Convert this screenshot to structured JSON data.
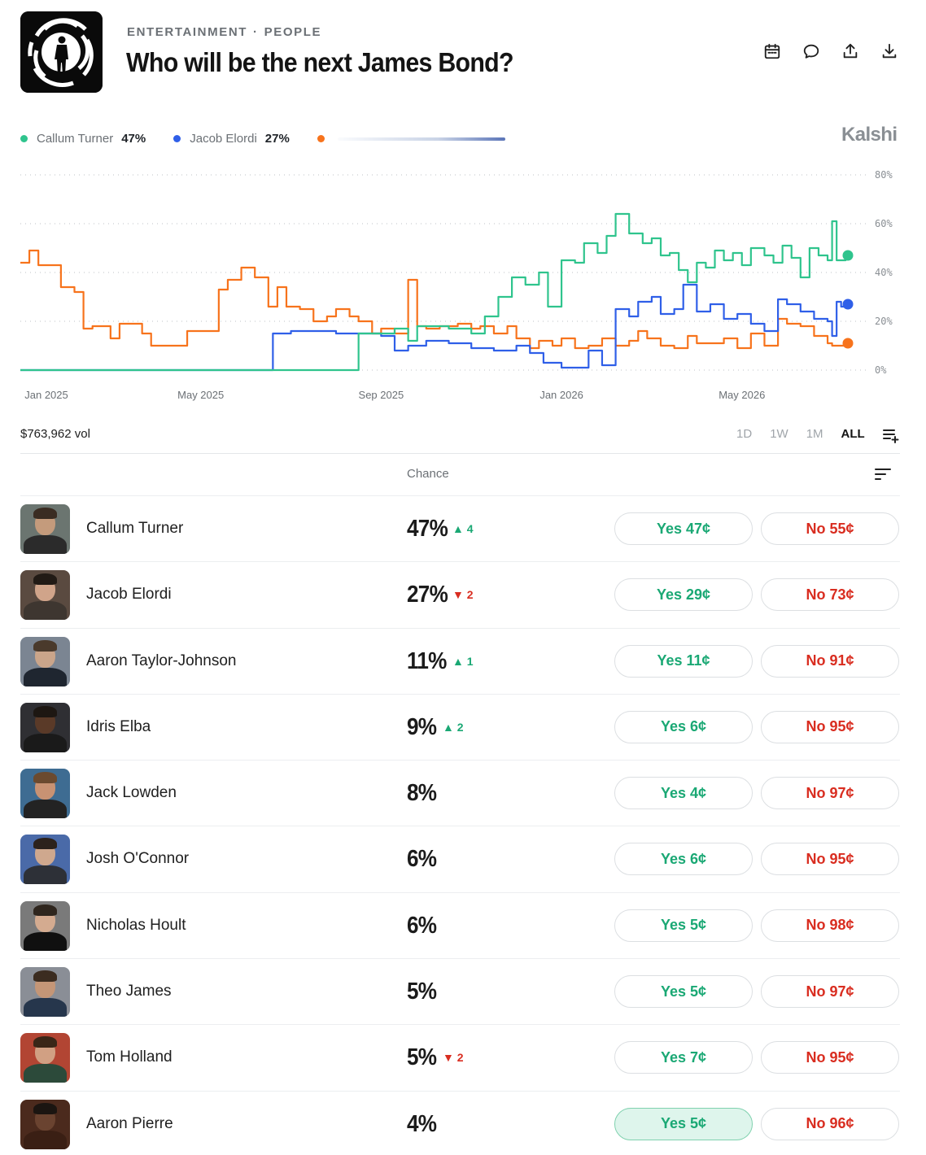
{
  "header": {
    "category": "ENTERTAINMENT",
    "subcategory": "PEOPLE",
    "separator": "·",
    "title": "Who will be the next James Bond?",
    "icons": [
      "calendar-icon",
      "comment-icon",
      "share-icon",
      "download-icon"
    ]
  },
  "brand": "Kalshi",
  "legend": [
    {
      "name": "Callum Turner",
      "value": "47%",
      "color": "#2fc48d"
    },
    {
      "name": "Jacob Elordi",
      "value": "27%",
      "color": "#2f5fe8"
    },
    {
      "name": "",
      "value": "",
      "color": "#f7731c"
    }
  ],
  "chart_data": {
    "type": "line",
    "x_tick_labels": [
      "Jan 2025",
      "May 2025",
      "Sep 2025",
      "Jan 2026",
      "May 2026"
    ],
    "y_tick_labels": [
      "80%",
      "60%",
      "40%",
      "20%",
      "0%"
    ],
    "ylim": [
      0,
      80
    ],
    "grid": true,
    "series": [
      {
        "name": "Callum Turner",
        "color": "#2fc48d",
        "points": [
          [
            0,
            0
          ],
          [
            1,
            0
          ],
          [
            2,
            0
          ],
          [
            3,
            0
          ],
          [
            4,
            0
          ],
          [
            5,
            0
          ],
          [
            6,
            0
          ],
          [
            6.5,
            0
          ],
          [
            7,
            0
          ],
          [
            7.5,
            15
          ],
          [
            8,
            15
          ],
          [
            8.3,
            17
          ],
          [
            8.6,
            12
          ],
          [
            8.8,
            18
          ],
          [
            9,
            18
          ],
          [
            9.5,
            17
          ],
          [
            10,
            15
          ],
          [
            10.3,
            22
          ],
          [
            10.6,
            30
          ],
          [
            10.9,
            38
          ],
          [
            11.2,
            35
          ],
          [
            11.5,
            40
          ],
          [
            11.7,
            26
          ],
          [
            12,
            45
          ],
          [
            12.3,
            44
          ],
          [
            12.5,
            52
          ],
          [
            12.8,
            48
          ],
          [
            13,
            55
          ],
          [
            13.2,
            64
          ],
          [
            13.5,
            56
          ],
          [
            13.8,
            52
          ],
          [
            14,
            54
          ],
          [
            14.2,
            47
          ],
          [
            14.4,
            48
          ],
          [
            14.6,
            41
          ],
          [
            14.8,
            36
          ],
          [
            15,
            44
          ],
          [
            15.2,
            42
          ],
          [
            15.4,
            49
          ],
          [
            15.6,
            45
          ],
          [
            15.8,
            48
          ],
          [
            16,
            43
          ],
          [
            16.2,
            50
          ],
          [
            16.5,
            47
          ],
          [
            16.7,
            44
          ],
          [
            16.9,
            51
          ],
          [
            17.1,
            46
          ],
          [
            17.3,
            38
          ],
          [
            17.5,
            50
          ],
          [
            17.7,
            47
          ],
          [
            17.9,
            45
          ],
          [
            18,
            61
          ],
          [
            18.1,
            45
          ],
          [
            18.3,
            48
          ],
          [
            18.35,
            47
          ]
        ]
      },
      {
        "name": "Jacob Elordi",
        "color": "#2f5fe8",
        "points": [
          [
            0,
            0
          ],
          [
            1,
            0
          ],
          [
            2,
            0
          ],
          [
            3,
            0
          ],
          [
            4,
            0
          ],
          [
            5,
            0
          ],
          [
            5.5,
            0
          ],
          [
            5.6,
            15
          ],
          [
            6,
            16
          ],
          [
            6.5,
            16
          ],
          [
            7,
            15
          ],
          [
            7.5,
            15
          ],
          [
            8,
            14
          ],
          [
            8.3,
            8
          ],
          [
            8.6,
            10
          ],
          [
            9,
            12
          ],
          [
            9.5,
            11
          ],
          [
            10,
            9
          ],
          [
            10.5,
            8
          ],
          [
            11,
            10
          ],
          [
            11.3,
            7
          ],
          [
            11.6,
            3
          ],
          [
            12,
            1
          ],
          [
            12.3,
            1
          ],
          [
            12.6,
            8
          ],
          [
            12.9,
            2
          ],
          [
            13.2,
            25
          ],
          [
            13.5,
            22
          ],
          [
            13.7,
            28
          ],
          [
            14,
            30
          ],
          [
            14.2,
            23
          ],
          [
            14.5,
            25
          ],
          [
            14.7,
            35
          ],
          [
            15,
            24
          ],
          [
            15.3,
            27
          ],
          [
            15.6,
            21
          ],
          [
            15.9,
            23
          ],
          [
            16.2,
            19
          ],
          [
            16.5,
            16
          ],
          [
            16.8,
            29
          ],
          [
            17,
            27
          ],
          [
            17.3,
            24
          ],
          [
            17.6,
            21
          ],
          [
            17.9,
            20
          ],
          [
            18,
            14
          ],
          [
            18.1,
            28
          ],
          [
            18.2,
            26
          ],
          [
            18.35,
            27
          ]
        ]
      },
      {
        "name": "",
        "color": "#f7731c",
        "points": [
          [
            0,
            44
          ],
          [
            0.2,
            49
          ],
          [
            0.4,
            43
          ],
          [
            0.6,
            43
          ],
          [
            0.8,
            43
          ],
          [
            0.9,
            34
          ],
          [
            1.2,
            32
          ],
          [
            1.4,
            17
          ],
          [
            1.6,
            18
          ],
          [
            1.8,
            18
          ],
          [
            2,
            13
          ],
          [
            2.2,
            19
          ],
          [
            2.5,
            19
          ],
          [
            2.7,
            15
          ],
          [
            2.9,
            10
          ],
          [
            3.2,
            10
          ],
          [
            3.5,
            10
          ],
          [
            3.7,
            16
          ],
          [
            4.2,
            16
          ],
          [
            4.4,
            33
          ],
          [
            4.6,
            37
          ],
          [
            4.9,
            42
          ],
          [
            5.2,
            38
          ],
          [
            5.5,
            26
          ],
          [
            5.7,
            34
          ],
          [
            5.9,
            26
          ],
          [
            6.2,
            25
          ],
          [
            6.5,
            20
          ],
          [
            6.8,
            22
          ],
          [
            7,
            25
          ],
          [
            7.3,
            22
          ],
          [
            7.5,
            20
          ],
          [
            7.8,
            15
          ],
          [
            8,
            17
          ],
          [
            8.3,
            15
          ],
          [
            8.6,
            37
          ],
          [
            8.8,
            18
          ],
          [
            9,
            17
          ],
          [
            9.3,
            18
          ],
          [
            9.5,
            18
          ],
          [
            9.7,
            19
          ],
          [
            10,
            17
          ],
          [
            10.2,
            18
          ],
          [
            10.5,
            15
          ],
          [
            10.8,
            18
          ],
          [
            11,
            13
          ],
          [
            11.3,
            9
          ],
          [
            11.5,
            12
          ],
          [
            11.8,
            10
          ],
          [
            12,
            13
          ],
          [
            12.3,
            9
          ],
          [
            12.6,
            10
          ],
          [
            12.9,
            13
          ],
          [
            13.2,
            10
          ],
          [
            13.5,
            12
          ],
          [
            13.7,
            16
          ],
          [
            13.9,
            13
          ],
          [
            14.2,
            10
          ],
          [
            14.5,
            9
          ],
          [
            14.8,
            14
          ],
          [
            15,
            11
          ],
          [
            15.3,
            11
          ],
          [
            15.6,
            13
          ],
          [
            15.9,
            9
          ],
          [
            16.2,
            15
          ],
          [
            16.5,
            10
          ],
          [
            16.8,
            21
          ],
          [
            17,
            19
          ],
          [
            17.3,
            18
          ],
          [
            17.6,
            14
          ],
          [
            17.9,
            11
          ],
          [
            18,
            10
          ],
          [
            18.35,
            11
          ]
        ]
      }
    ]
  },
  "volume": "$763,962 vol",
  "ranges": [
    {
      "label": "1D",
      "active": false
    },
    {
      "label": "1W",
      "active": false
    },
    {
      "label": "1M",
      "active": false
    },
    {
      "label": "ALL",
      "active": true
    }
  ],
  "table": {
    "chance_header": "Chance",
    "rows": [
      {
        "name": "Callum Turner",
        "pct": "47%",
        "change": "▲ 4",
        "dir": "up",
        "yes": "Yes 47¢",
        "no": "No 55¢",
        "skin": "#c49b7c",
        "hair": "#3a2c22",
        "suit": "#2b2b2b",
        "bg": "#6b7570"
      },
      {
        "name": "Jacob Elordi",
        "pct": "27%",
        "change": "▼ 2",
        "dir": "down",
        "yes": "Yes 29¢",
        "no": "No 73¢",
        "skin": "#d0a48a",
        "hair": "#211a15",
        "suit": "#3e3630",
        "bg": "#5a4a40"
      },
      {
        "name": "Aaron Taylor-Johnson",
        "pct": "11%",
        "change": "▲ 1",
        "dir": "up",
        "yes": "Yes 11¢",
        "no": "No 91¢",
        "skin": "#caa58a",
        "hair": "#4a3a2c",
        "suit": "#1f2630",
        "bg": "#7b8592"
      },
      {
        "name": "Idris Elba",
        "pct": "9%",
        "change": "▲ 2",
        "dir": "up",
        "yes": "Yes 6¢",
        "no": "No 95¢",
        "skin": "#5a3a28",
        "hair": "#1d1712",
        "suit": "#1a1a1a",
        "bg": "#2f2f33"
      },
      {
        "name": "Jack Lowden",
        "pct": "8%",
        "change": "",
        "dir": "",
        "yes": "Yes 4¢",
        "no": "No 97¢",
        "skin": "#c89273",
        "hair": "#6b4a2f",
        "suit": "#232323",
        "bg": "#3e6c92"
      },
      {
        "name": "Josh O'Connor",
        "pct": "6%",
        "change": "",
        "dir": "",
        "yes": "Yes 6¢",
        "no": "No 95¢",
        "skin": "#cfa88e",
        "hair": "#2c221c",
        "suit": "#2d3037",
        "bg": "#4a6aa8"
      },
      {
        "name": "Nicholas Hoult",
        "pct": "6%",
        "change": "",
        "dir": "",
        "yes": "Yes 5¢",
        "no": "No 98¢",
        "skin": "#d4ab90",
        "hair": "#2f261e",
        "suit": "#101010",
        "bg": "#7a7a7a"
      },
      {
        "name": "Theo James",
        "pct": "5%",
        "change": "",
        "dir": "",
        "yes": "Yes 5¢",
        "no": "No 97¢",
        "skin": "#c49677",
        "hair": "#3b2c20",
        "suit": "#26364c",
        "bg": "#8a8e96"
      },
      {
        "name": "Tom Holland",
        "pct": "5%",
        "change": "▼ 2",
        "dir": "down",
        "yes": "Yes 7¢",
        "no": "No 95¢",
        "skin": "#d1a083",
        "hair": "#3a2617",
        "suit": "#2c4a3a",
        "bg": "#b24533"
      },
      {
        "name": "Aaron Pierre",
        "pct": "4%",
        "change": "",
        "dir": "",
        "yes": "Yes 5¢",
        "no": "No 96¢",
        "skin": "#6a4330",
        "hair": "#1b1511",
        "suit": "#3a1f14",
        "bg": "#4b2a1d",
        "highlight": true
      }
    ]
  }
}
